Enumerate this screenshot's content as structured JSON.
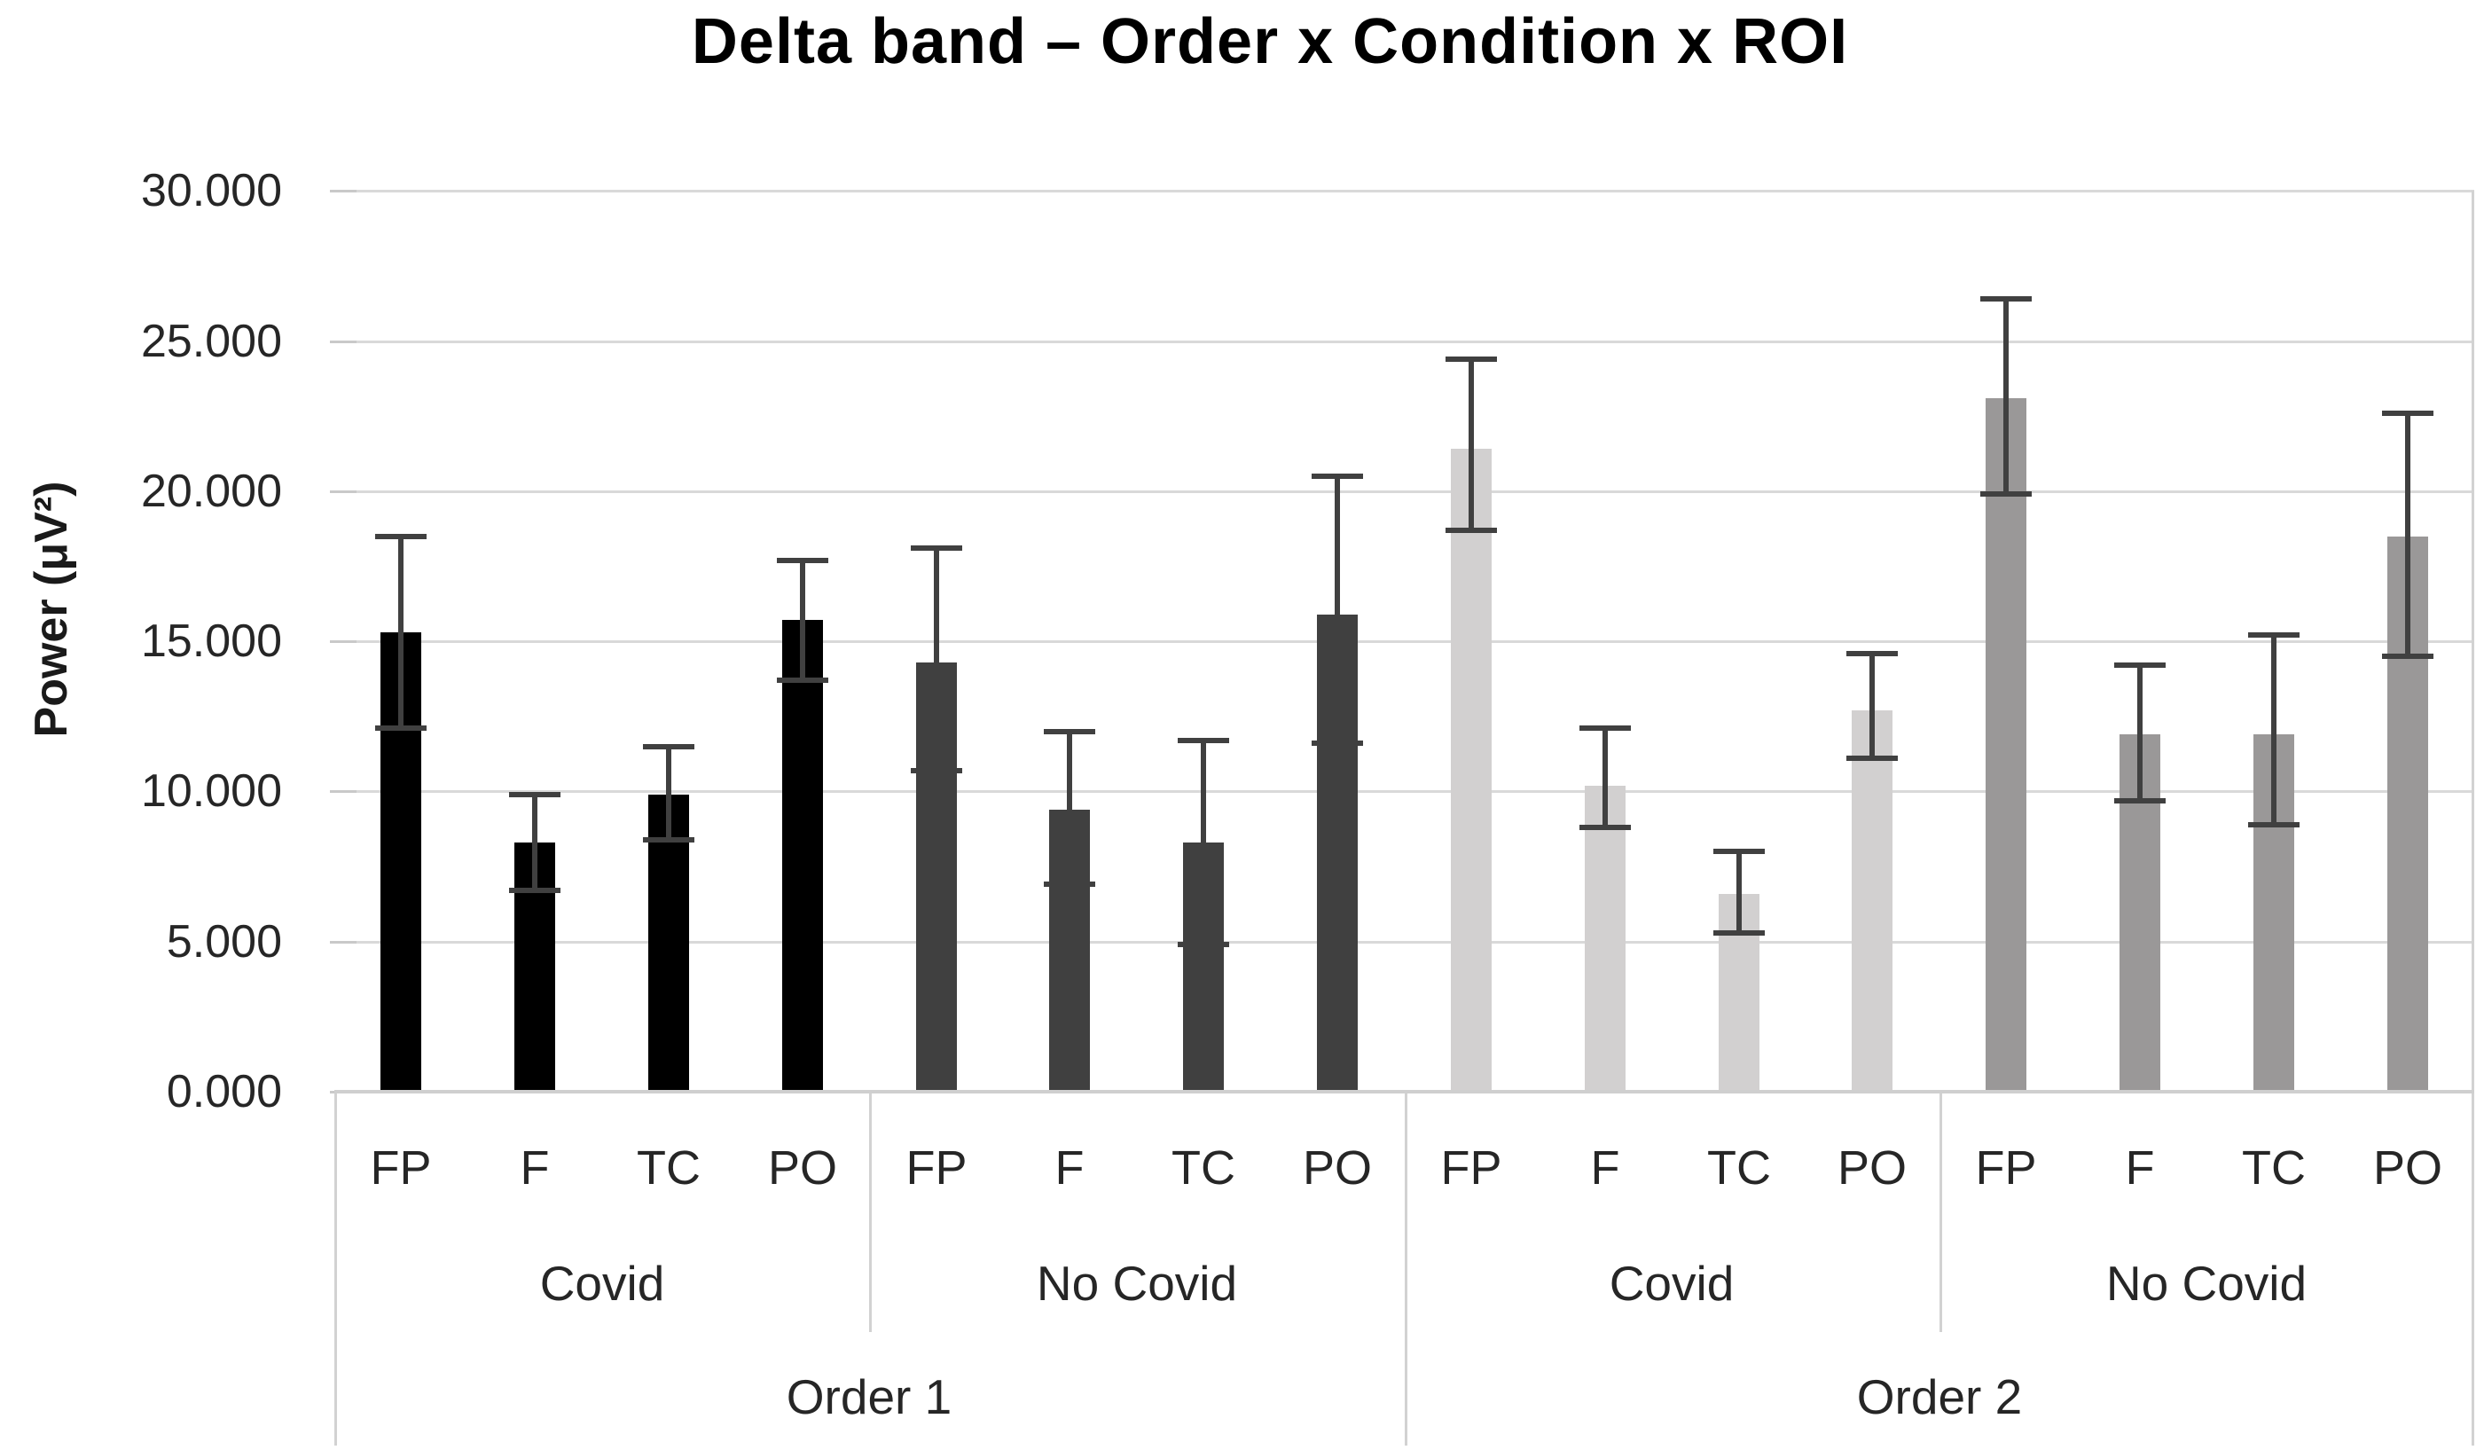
{
  "chart": {
    "title": "Delta band – Order x Condition x ROI",
    "y_axis_title": "Power (μV²)"
  },
  "chart_data": {
    "type": "bar",
    "title": "Delta band – Order x Condition x ROI",
    "ylabel": "Power (μV²)",
    "xlabel": "",
    "ylim": [
      0,
      30
    ],
    "ytick_step": 5,
    "grid": true,
    "legend": "none",
    "yticks": [
      {
        "value": 0,
        "label": "0.000"
      },
      {
        "value": 5,
        "label": "5.000"
      },
      {
        "value": 10,
        "label": "10.000"
      },
      {
        "value": 15,
        "label": "15.000"
      },
      {
        "value": 20,
        "label": "20.000"
      },
      {
        "value": 25,
        "label": "25.000"
      },
      {
        "value": 30,
        "label": "30.000"
      }
    ],
    "colors": {
      "gridline": "#d9d9d9",
      "axis_line": "#cfcfcf",
      "error_bar": "#404040",
      "text": "#262626",
      "title_text": "#000000"
    },
    "categories_note": "three-level category axis: ROI within Condition within Order",
    "groups": [
      {
        "order": "Order 1",
        "condition": "Covid",
        "bar_color": "#000000",
        "bars": [
          {
            "roi": "FP",
            "value": 15.3,
            "err_low": 12.1,
            "err_high": 18.5
          },
          {
            "roi": "F",
            "value": 8.3,
            "err_low": 6.7,
            "err_high": 9.9
          },
          {
            "roi": "TC",
            "value": 9.9,
            "err_low": 8.4,
            "err_high": 11.5
          },
          {
            "roi": "PO",
            "value": 15.7,
            "err_low": 13.7,
            "err_high": 17.7
          }
        ]
      },
      {
        "order": "Order 1",
        "condition": "No Covid",
        "bar_color": "#404040",
        "bars": [
          {
            "roi": "FP",
            "value": 14.3,
            "err_low": 10.7,
            "err_high": 18.1
          },
          {
            "roi": "F",
            "value": 9.4,
            "err_low": 6.9,
            "err_high": 12.0
          },
          {
            "roi": "TC",
            "value": 8.3,
            "err_low": 4.9,
            "err_high": 11.7
          },
          {
            "roi": "PO",
            "value": 15.9,
            "err_low": 11.6,
            "err_high": 20.5
          }
        ]
      },
      {
        "order": "Order 2",
        "condition": "Covid",
        "bar_color": "#d2d0d0",
        "bars": [
          {
            "roi": "FP",
            "value": 21.4,
            "err_low": 18.7,
            "err_high": 24.4
          },
          {
            "roi": "F",
            "value": 10.2,
            "err_low": 8.8,
            "err_high": 12.1
          },
          {
            "roi": "TC",
            "value": 6.6,
            "err_low": 5.3,
            "err_high": 8.0
          },
          {
            "roi": "PO",
            "value": 12.7,
            "err_low": 11.1,
            "err_high": 14.6
          }
        ]
      },
      {
        "order": "Order 2",
        "condition": "No Covid",
        "bar_color": "#9a9898",
        "bars": [
          {
            "roi": "FP",
            "value": 23.1,
            "err_low": 19.9,
            "err_high": 26.4
          },
          {
            "roi": "F",
            "value": 11.9,
            "err_low": 9.7,
            "err_high": 14.2
          },
          {
            "roi": "TC",
            "value": 11.9,
            "err_low": 8.9,
            "err_high": 15.2
          },
          {
            "roi": "PO",
            "value": 18.5,
            "err_low": 14.5,
            "err_high": 22.6
          }
        ]
      }
    ]
  }
}
